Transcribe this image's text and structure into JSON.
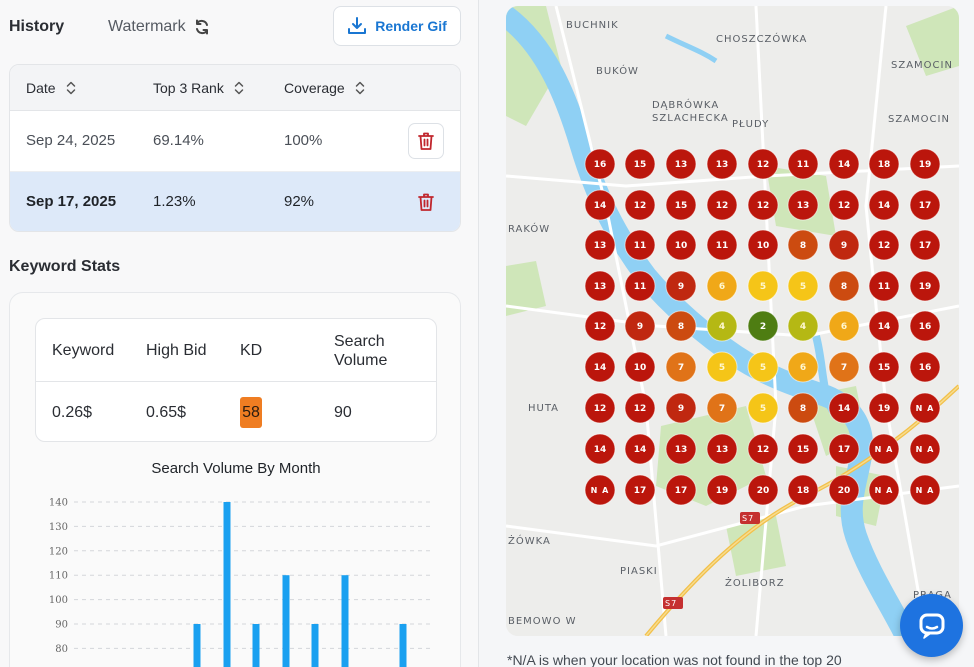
{
  "history": {
    "title": "History",
    "watermark_label": "Watermark",
    "render_button": "Render Gif",
    "columns": [
      "Date",
      "Top 3 Rank",
      "Coverage"
    ],
    "rows": [
      {
        "date": "Sep 24, 2025",
        "top3": "69.14%",
        "coverage": "100%",
        "selected": false
      },
      {
        "date": "Sep 17, 2025",
        "top3": "1.23%",
        "coverage": "92%",
        "selected": true
      }
    ]
  },
  "keyword_stats": {
    "title": "Keyword Stats",
    "columns": [
      "Keyword",
      "High Bid",
      "KD",
      "Search\nVolume"
    ],
    "row": {
      "keyword": "0.26$",
      "high_bid": "0.65$",
      "kd": "58",
      "search_volume": "90"
    },
    "kd_color": "#ef7d22"
  },
  "chart_data": {
    "type": "bar",
    "title": "Search Volume By Month",
    "ylim": [
      80,
      140
    ],
    "y_ticks": [
      140,
      130,
      120,
      110,
      100,
      90,
      80
    ],
    "values": [
      90,
      140,
      90,
      110,
      90,
      110,
      90
    ],
    "bar_color": "#1aa0f0",
    "grid": true
  },
  "map": {
    "labels": [
      {
        "text": "BUCHNIK"
      },
      {
        "text": "CHOSZCZÓWKA"
      },
      {
        "text": "SZAMOCIN"
      },
      {
        "text": "BUKÓW"
      },
      {
        "text": "DĄBRÓWKA"
      },
      {
        "text": "SZLACHECKA"
      },
      {
        "text": "PŁUDY"
      },
      {
        "text": "SZAMOCIN"
      },
      {
        "text": "RAKÓW"
      },
      {
        "text": "HUTA"
      },
      {
        "text": "ŻÓWKA"
      },
      {
        "text": "PIASKI"
      },
      {
        "text": "ŻOLIBORZ"
      },
      {
        "text": "BEMOWO W"
      },
      {
        "text": "PRAGA"
      },
      {
        "text": "S7"
      },
      {
        "text": "S7"
      }
    ],
    "grid_ranks": [
      [
        "16",
        "15",
        "13",
        "13",
        "12",
        "11",
        "14",
        "18",
        "19"
      ],
      [
        "14",
        "12",
        "15",
        "12",
        "12",
        "13",
        "12",
        "14",
        "17"
      ],
      [
        "13",
        "11",
        "10",
        "11",
        "10",
        "8",
        "9",
        "12",
        "17"
      ],
      [
        "13",
        "11",
        "9",
        "6",
        "5",
        "5",
        "8",
        "11",
        "19"
      ],
      [
        "12",
        "9",
        "8",
        "4",
        "2",
        "4",
        "6",
        "14",
        "16"
      ],
      [
        "14",
        "10",
        "7",
        "5",
        "5",
        "6",
        "7",
        "15",
        "16"
      ],
      [
        "12",
        "12",
        "9",
        "7",
        "5",
        "8",
        "14",
        "19",
        "NA"
      ],
      [
        "14",
        "14",
        "13",
        "13",
        "12",
        "15",
        "17",
        "NA",
        "NA"
      ],
      [
        "NA",
        "17",
        "17",
        "19",
        "20",
        "18",
        "20",
        "NA",
        "NA"
      ]
    ],
    "rank_colors": {
      "2": "#4e7d12",
      "4": "#b5b814",
      "5": "#f5c518",
      "6": "#f0a818",
      "7": "#e07318",
      "8": "#cc4b10",
      "9": "#c02810",
      "high": "#bb160c",
      "na": "#bb160c"
    }
  },
  "footnote": "*N/A is when your location was not found in the top 20",
  "icons": [
    "refresh-icon",
    "download-icon",
    "sort-icon",
    "trash-icon",
    "chat-icon"
  ]
}
